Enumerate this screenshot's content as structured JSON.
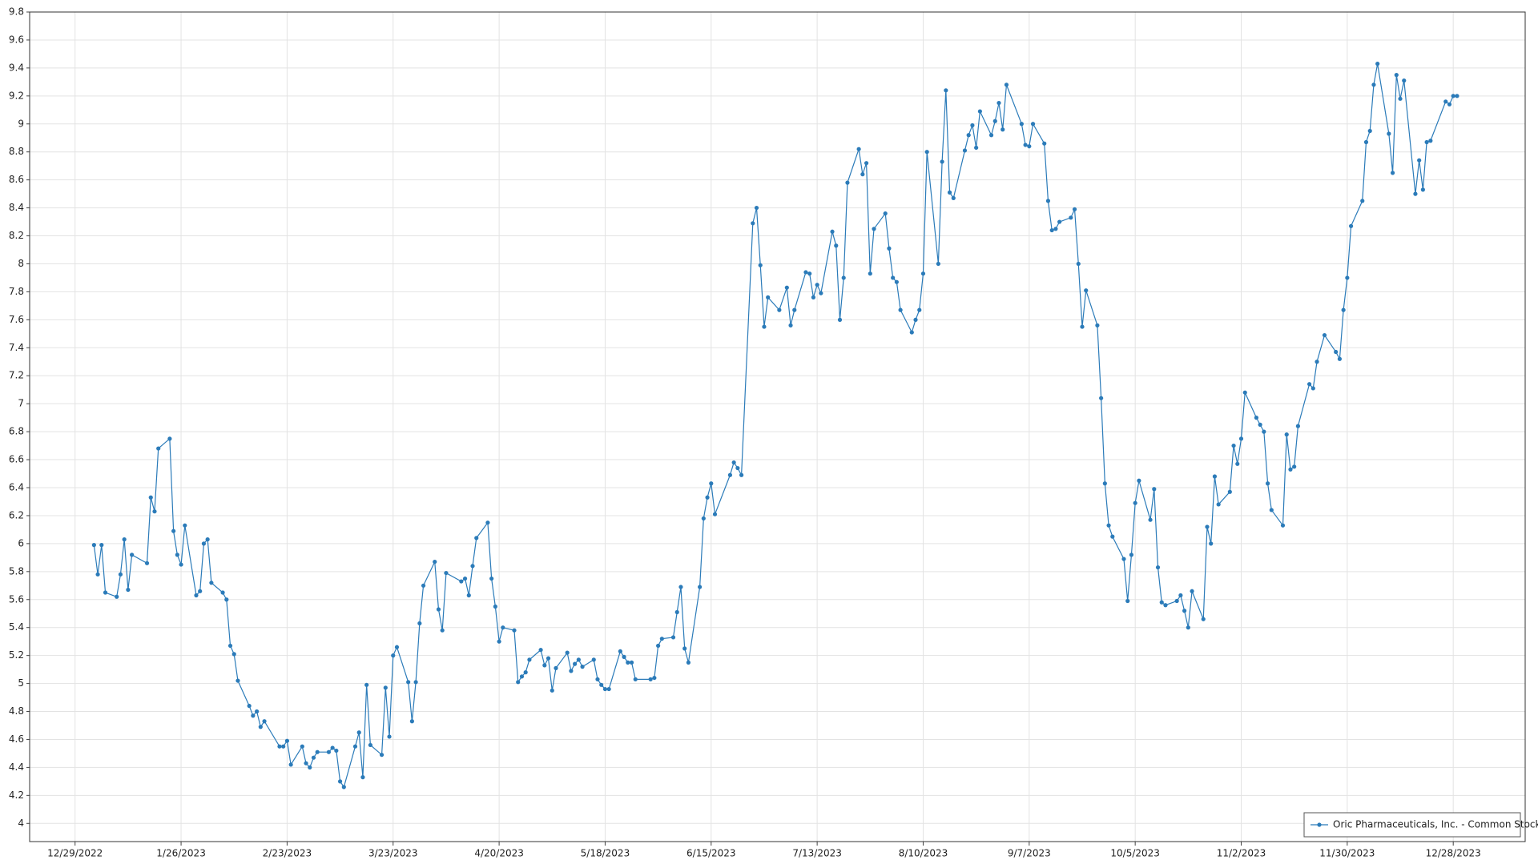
{
  "chart_data": {
    "type": "line",
    "x": [
      "2023-01-03",
      "2023-01-04",
      "2023-01-05",
      "2023-01-06",
      "2023-01-09",
      "2023-01-10",
      "2023-01-11",
      "2023-01-12",
      "2023-01-13",
      "2023-01-17",
      "2023-01-18",
      "2023-01-19",
      "2023-01-20",
      "2023-01-23",
      "2023-01-24",
      "2023-01-25",
      "2023-01-26",
      "2023-01-27",
      "2023-01-30",
      "2023-01-31",
      "2023-02-01",
      "2023-02-02",
      "2023-02-03",
      "2023-02-06",
      "2023-02-07",
      "2023-02-08",
      "2023-02-09",
      "2023-02-10",
      "2023-02-13",
      "2023-02-14",
      "2023-02-15",
      "2023-02-16",
      "2023-02-17",
      "2023-02-21",
      "2023-02-22",
      "2023-02-23",
      "2023-02-24",
      "2023-02-27",
      "2023-02-28",
      "2023-03-01",
      "2023-03-02",
      "2023-03-03",
      "2023-03-06",
      "2023-03-07",
      "2023-03-08",
      "2023-03-09",
      "2023-03-10",
      "2023-03-13",
      "2023-03-14",
      "2023-03-15",
      "2023-03-16",
      "2023-03-17",
      "2023-03-20",
      "2023-03-21",
      "2023-03-22",
      "2023-03-23",
      "2023-03-24",
      "2023-03-27",
      "2023-03-28",
      "2023-03-29",
      "2023-03-30",
      "2023-03-31",
      "2023-04-03",
      "2023-04-04",
      "2023-04-05",
      "2023-04-06",
      "2023-04-10",
      "2023-04-11",
      "2023-04-12",
      "2023-04-13",
      "2023-04-14",
      "2023-04-17",
      "2023-04-18",
      "2023-04-19",
      "2023-04-20",
      "2023-04-21",
      "2023-04-24",
      "2023-04-25",
      "2023-04-26",
      "2023-04-27",
      "2023-04-28",
      "2023-05-01",
      "2023-05-02",
      "2023-05-03",
      "2023-05-04",
      "2023-05-05",
      "2023-05-08",
      "2023-05-09",
      "2023-05-10",
      "2023-05-11",
      "2023-05-12",
      "2023-05-15",
      "2023-05-16",
      "2023-05-17",
      "2023-05-18",
      "2023-05-19",
      "2023-05-22",
      "2023-05-23",
      "2023-05-24",
      "2023-05-25",
      "2023-05-26",
      "2023-05-30",
      "2023-05-31",
      "2023-06-01",
      "2023-06-02",
      "2023-06-05",
      "2023-06-06",
      "2023-06-07",
      "2023-06-08",
      "2023-06-09",
      "2023-06-12",
      "2023-06-13",
      "2023-06-14",
      "2023-06-15",
      "2023-06-16",
      "2023-06-20",
      "2023-06-21",
      "2023-06-22",
      "2023-06-23",
      "2023-06-26",
      "2023-06-27",
      "2023-06-28",
      "2023-06-29",
      "2023-06-30",
      "2023-07-03",
      "2023-07-05",
      "2023-07-06",
      "2023-07-07",
      "2023-07-10",
      "2023-07-11",
      "2023-07-12",
      "2023-07-13",
      "2023-07-14",
      "2023-07-17",
      "2023-07-18",
      "2023-07-19",
      "2023-07-20",
      "2023-07-21",
      "2023-07-24",
      "2023-07-25",
      "2023-07-26",
      "2023-07-27",
      "2023-07-28",
      "2023-07-31",
      "2023-08-01",
      "2023-08-02",
      "2023-08-03",
      "2023-08-04",
      "2023-08-07",
      "2023-08-08",
      "2023-08-09",
      "2023-08-10",
      "2023-08-11",
      "2023-08-14",
      "2023-08-15",
      "2023-08-16",
      "2023-08-17",
      "2023-08-18",
      "2023-08-21",
      "2023-08-22",
      "2023-08-23",
      "2023-08-24",
      "2023-08-25",
      "2023-08-28",
      "2023-08-29",
      "2023-08-30",
      "2023-08-31",
      "2023-09-01",
      "2023-09-05",
      "2023-09-06",
      "2023-09-07",
      "2023-09-08",
      "2023-09-11",
      "2023-09-12",
      "2023-09-13",
      "2023-09-14",
      "2023-09-15",
      "2023-09-18",
      "2023-09-19",
      "2023-09-20",
      "2023-09-21",
      "2023-09-22",
      "2023-09-25",
      "2023-09-26",
      "2023-09-27",
      "2023-09-28",
      "2023-09-29",
      "2023-10-02",
      "2023-10-03",
      "2023-10-04",
      "2023-10-05",
      "2023-10-06",
      "2023-10-09",
      "2023-10-10",
      "2023-10-11",
      "2023-10-12",
      "2023-10-13",
      "2023-10-16",
      "2023-10-17",
      "2023-10-18",
      "2023-10-19",
      "2023-10-20",
      "2023-10-23",
      "2023-10-24",
      "2023-10-25",
      "2023-10-26",
      "2023-10-27",
      "2023-10-30",
      "2023-10-31",
      "2023-11-01",
      "2023-11-02",
      "2023-11-03",
      "2023-11-06",
      "2023-11-07",
      "2023-11-08",
      "2023-11-09",
      "2023-11-10",
      "2023-11-13",
      "2023-11-14",
      "2023-11-15",
      "2023-11-16",
      "2023-11-17",
      "2023-11-20",
      "2023-11-21",
      "2023-11-22",
      "2023-11-24",
      "2023-11-27",
      "2023-11-28",
      "2023-11-29",
      "2023-11-30",
      "2023-12-01",
      "2023-12-04",
      "2023-12-05",
      "2023-12-06",
      "2023-12-07",
      "2023-12-08",
      "2023-12-11",
      "2023-12-12",
      "2023-12-13",
      "2023-12-14",
      "2023-12-15",
      "2023-12-18",
      "2023-12-19",
      "2023-12-20",
      "2023-12-21",
      "2023-12-22",
      "2023-12-26",
      "2023-12-27",
      "2023-12-28",
      "2023-12-29"
    ],
    "series": [
      {
        "name": "Oric Pharmaceuticals, Inc. - Common Stock",
        "color": "#2b7bb9",
        "values": [
          5.99,
          5.78,
          5.99,
          5.65,
          5.62,
          5.78,
          6.03,
          5.67,
          5.92,
          5.86,
          6.33,
          6.23,
          6.68,
          6.75,
          6.09,
          5.92,
          5.85,
          6.13,
          5.63,
          5.66,
          6.0,
          6.03,
          5.72,
          5.65,
          5.6,
          5.27,
          5.21,
          5.02,
          4.84,
          4.77,
          4.8,
          4.69,
          4.73,
          4.55,
          4.55,
          4.59,
          4.42,
          4.55,
          4.43,
          4.4,
          4.47,
          4.51,
          4.51,
          4.54,
          4.52,
          4.3,
          4.26,
          4.55,
          4.65,
          4.33,
          4.99,
          4.56,
          4.49,
          4.97,
          4.62,
          5.2,
          5.26,
          5.01,
          4.73,
          5.01,
          5.43,
          5.7,
          5.87,
          5.53,
          5.38,
          5.79,
          5.73,
          5.75,
          5.63,
          5.84,
          6.04,
          6.15,
          5.75,
          5.55,
          5.3,
          5.4,
          5.38,
          5.01,
          5.05,
          5.08,
          5.17,
          5.24,
          5.13,
          5.18,
          4.95,
          5.11,
          5.22,
          5.09,
          5.14,
          5.17,
          5.12,
          5.17,
          5.03,
          4.99,
          4.96,
          4.96,
          5.23,
          5.19,
          5.15,
          5.15,
          5.03,
          5.03,
          5.04,
          5.27,
          5.32,
          5.33,
          5.51,
          5.69,
          5.25,
          5.15,
          5.69,
          6.18,
          6.33,
          6.43,
          6.21,
          6.49,
          6.58,
          6.54,
          6.49,
          8.29,
          8.4,
          7.99,
          7.55,
          7.76,
          7.67,
          7.83,
          7.56,
          7.67,
          7.94,
          7.93,
          7.76,
          7.85,
          7.79,
          8.23,
          8.13,
          7.6,
          7.9,
          8.58,
          8.82,
          8.64,
          8.72,
          7.93,
          8.25,
          8.36,
          8.11,
          7.9,
          7.87,
          7.67,
          7.51,
          7.6,
          7.67,
          7.93,
          8.8,
          8.0,
          8.73,
          9.24,
          8.51,
          8.47,
          8.81,
          8.92,
          8.99,
          8.83,
          9.09,
          8.92,
          9.02,
          9.15,
          8.96,
          9.28,
          9.0,
          8.85,
          8.84,
          9.0,
          8.86,
          8.45,
          8.24,
          8.25,
          8.3,
          8.33,
          8.39,
          8.0,
          7.55,
          7.81,
          7.56,
          7.04,
          6.43,
          6.13,
          6.05,
          5.89,
          5.59,
          5.92,
          6.29,
          6.45,
          6.17,
          6.39,
          5.83,
          5.58,
          5.56,
          5.59,
          5.63,
          5.52,
          5.4,
          5.66,
          5.46,
          6.12,
          6.0,
          6.48,
          6.28,
          6.37,
          6.7,
          6.57,
          6.75,
          7.08,
          6.9,
          6.85,
          6.8,
          6.43,
          6.24,
          6.13,
          6.78,
          6.53,
          6.55,
          6.84,
          7.14,
          7.11,
          7.3,
          7.49,
          7.37,
          7.32,
          7.67,
          7.9,
          8.27,
          8.45,
          8.87,
          8.95,
          9.28,
          9.43,
          8.93,
          8.65,
          9.35,
          9.18,
          9.31,
          8.5,
          8.74,
          8.53,
          8.87,
          8.88,
          9.16,
          9.14,
          9.2,
          9.2
        ]
      }
    ],
    "xlim": [
      "2022-12-17",
      "2024-01-16"
    ],
    "xticks": [
      {
        "value": "2022-12-29",
        "label": "12/29/2022"
      },
      {
        "value": "2023-01-26",
        "label": "1/26/2023"
      },
      {
        "value": "2023-02-23",
        "label": "2/23/2023"
      },
      {
        "value": "2023-03-23",
        "label": "3/23/2023"
      },
      {
        "value": "2023-04-20",
        "label": "4/20/2023"
      },
      {
        "value": "2023-05-18",
        "label": "5/18/2023"
      },
      {
        "value": "2023-06-15",
        "label": "6/15/2023"
      },
      {
        "value": "2023-07-13",
        "label": "7/13/2023"
      },
      {
        "value": "2023-08-10",
        "label": "8/10/2023"
      },
      {
        "value": "2023-09-07",
        "label": "9/7/2023"
      },
      {
        "value": "2023-10-05",
        "label": "10/5/2023"
      },
      {
        "value": "2023-11-02",
        "label": "11/2/2023"
      },
      {
        "value": "2023-11-30",
        "label": "11/30/2023"
      },
      {
        "value": "2023-12-28",
        "label": "12/28/2023"
      }
    ],
    "ylim": [
      3.87,
      9.8
    ],
    "yticks": [
      4,
      4.2,
      4.4,
      4.6,
      4.8,
      5,
      5.2,
      5.4,
      5.6,
      5.8,
      6,
      6.2,
      6.4,
      6.6,
      6.8,
      7,
      7.2,
      7.4,
      7.6,
      7.8,
      8,
      8.2,
      8.4,
      8.6,
      8.8,
      9,
      9.2,
      9.4,
      9.6,
      9.8
    ],
    "grid": true,
    "legend": "lower right"
  }
}
